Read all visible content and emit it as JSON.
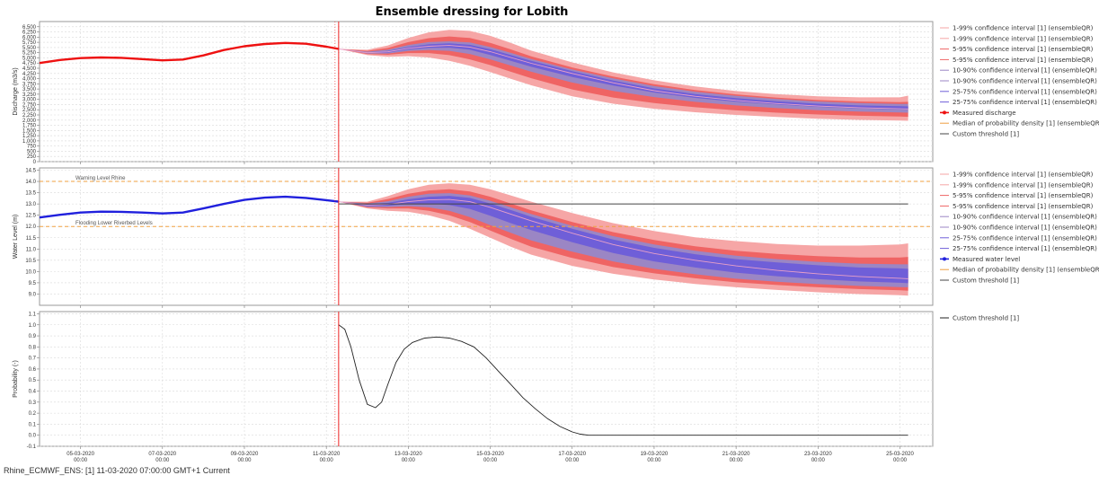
{
  "title": "Ensemble dressing for Lobith",
  "footer": "Rhine_ECMWF_ENS: [1] 11-03-2020 07:00:00 GMT+1 Current",
  "colors": {
    "band_outer": "#f6a6a6",
    "band_mid": "#ef6464",
    "band_inner": "#9b86c4",
    "band_core": "#6f5fd8",
    "median": "#e8a0c8",
    "discharge": "#ee1111",
    "water": "#2020dd",
    "threshold": "#444444",
    "level_line": "#f0a040",
    "forecast_line": "#ee2222"
  },
  "chart_data": [
    {
      "type": "area",
      "ylabel": "Discharge (m3/s)",
      "ylim": [
        0,
        6750
      ],
      "yticks": [
        0,
        250,
        500,
        750,
        1000,
        1250,
        1500,
        1750,
        2000,
        2250,
        2500,
        2750,
        3000,
        3250,
        3500,
        3750,
        4000,
        4250,
        4500,
        4750,
        5000,
        5250,
        5500,
        5750,
        6000,
        6250,
        6500
      ],
      "ytick_labels": [
        "0",
        "250",
        "500",
        "750",
        "1,000",
        "1,250",
        "1,500",
        "1,750",
        "2,000",
        "2,250",
        "2,500",
        "2,750",
        "3,000",
        "3,250",
        "3,500",
        "3,750",
        "4,000",
        "4,250",
        "4,500",
        "4,750",
        "5,000",
        "5,250",
        "5,500",
        "5,750",
        "6,000",
        "6,250",
        "6,500"
      ],
      "legend": [
        "1-99% confidence interval [1]  (ensembleQR)",
        "1-99% confidence interval [1]  (ensembleQR)",
        "5-95% confidence interval [1]  (ensembleQR)",
        "5-95% confidence interval [1]  (ensembleQR)",
        "10-90% confidence interval [1]  (ensembleQR)",
        "10-90% confidence interval [1]  (ensembleQR)",
        "25-75% confidence interval [1]  (ensembleQR)",
        "25-75% confidence interval [1]  (ensembleQR)",
        "Measured discharge",
        "Median of probability density [1]  (ensembleQR)",
        "Custom threshold [1]"
      ],
      "measured_name": "Measured discharge",
      "measured": {
        "x": [
          4.0,
          4.5,
          5.0,
          5.5,
          6.0,
          6.5,
          7.0,
          7.5,
          8.0,
          8.5,
          9.0,
          9.5,
          10.0,
          10.5,
          11.0,
          11.3
        ],
        "y": [
          4750,
          4900,
          4990,
          5020,
          5000,
          4940,
          4880,
          4920,
          5120,
          5380,
          5560,
          5670,
          5720,
          5680,
          5540,
          5430
        ]
      },
      "forecast_x": [
        11.3,
        12.0,
        12.5,
        13.0,
        13.5,
        14.0,
        14.5,
        15.0,
        15.5,
        16.0,
        17.0,
        18.0,
        19.0,
        20.0,
        21.0,
        22.0,
        23.0,
        24.0,
        25.0,
        25.2
      ],
      "median": [
        5430,
        5250,
        5290,
        5460,
        5560,
        5600,
        5520,
        5300,
        5020,
        4740,
        4250,
        3800,
        3420,
        3150,
        2950,
        2800,
        2680,
        2600,
        2550,
        2540
      ],
      "bands": [
        {
          "lower": [
            5430,
            5130,
            5050,
            5080,
            5020,
            4860,
            4620,
            4320,
            3990,
            3680,
            3150,
            2790,
            2550,
            2380,
            2250,
            2150,
            2070,
            2010,
            1980,
            1970
          ],
          "upper": [
            5430,
            5390,
            5600,
            5960,
            6230,
            6350,
            6300,
            6060,
            5720,
            5350,
            4780,
            4300,
            3920,
            3620,
            3400,
            3250,
            3150,
            3100,
            3100,
            3180
          ]
        },
        {
          "lower": [
            5430,
            5180,
            5150,
            5230,
            5230,
            5130,
            4930,
            4650,
            4330,
            4020,
            3480,
            3090,
            2820,
            2620,
            2470,
            2360,
            2270,
            2210,
            2170,
            2160
          ],
          "upper": [
            5430,
            5340,
            5480,
            5760,
            5950,
            6030,
            5960,
            5720,
            5410,
            5070,
            4540,
            4100,
            3730,
            3450,
            3240,
            3080,
            2970,
            2900,
            2870,
            2880
          ]
        },
        {
          "lower": [
            5430,
            5210,
            5210,
            5330,
            5380,
            5340,
            5190,
            4930,
            4630,
            4330,
            3810,
            3410,
            3110,
            2880,
            2710,
            2580,
            2480,
            2410,
            2370,
            2360
          ],
          "upper": [
            5430,
            5300,
            5390,
            5620,
            5760,
            5800,
            5740,
            5520,
            5240,
            4940,
            4440,
            4010,
            3640,
            3370,
            3170,
            3020,
            2900,
            2820,
            2780,
            2780
          ]
        },
        {
          "lower": [
            5430,
            5230,
            5250,
            5400,
            5480,
            5490,
            5390,
            5140,
            4860,
            4570,
            4080,
            3670,
            3330,
            3070,
            2890,
            2750,
            2640,
            2560,
            2510,
            2500
          ],
          "upper": [
            5430,
            5270,
            5330,
            5520,
            5650,
            5700,
            5630,
            5420,
            5140,
            4860,
            4360,
            3910,
            3530,
            3260,
            3060,
            2910,
            2790,
            2710,
            2670,
            2660
          ]
        }
      ],
      "threshold": null
    },
    {
      "type": "area",
      "ylabel": "Water Level (m)",
      "ylim": [
        8.5,
        14.6
      ],
      "yticks": [
        9.0,
        9.5,
        10.0,
        10.5,
        11.0,
        11.5,
        12.0,
        12.5,
        13.0,
        13.5,
        14.0,
        14.5
      ],
      "ytick_labels": [
        "9.0",
        "9.5",
        "10.0",
        "10.5",
        "11.0",
        "11.5",
        "12.0",
        "12.5",
        "13.0",
        "13.5",
        "14.0",
        "14.5"
      ],
      "legend": [
        "1-99% confidence interval [1]  (ensembleQR)",
        "1-99% confidence interval [1]  (ensembleQR)",
        "5-95% confidence interval [1]  (ensembleQR)",
        "5-95% confidence interval [1]  (ensembleQR)",
        "10-90% confidence interval [1]  (ensembleQR)",
        "10-90% confidence interval [1]  (ensembleQR)",
        "25-75% confidence interval [1]  (ensembleQR)",
        "25-75% confidence interval [1]  (ensembleQR)",
        "Measured water level",
        "Median of probability density [1]  (ensembleQR)",
        "Custom threshold [1]"
      ],
      "measured_name": "Measured water level",
      "measured": {
        "x": [
          4.0,
          4.5,
          5.0,
          5.5,
          6.0,
          6.5,
          7.0,
          7.5,
          8.0,
          8.5,
          9.0,
          9.5,
          10.0,
          10.5,
          11.0,
          11.3
        ],
        "y": [
          12.4,
          12.52,
          12.62,
          12.66,
          12.65,
          12.62,
          12.58,
          12.62,
          12.8,
          13.0,
          13.18,
          13.28,
          13.32,
          13.27,
          13.17,
          13.1
        ]
      },
      "forecast_x": [
        11.3,
        12.0,
        12.5,
        13.0,
        13.5,
        14.0,
        14.5,
        15.0,
        15.5,
        16.0,
        17.0,
        18.0,
        19.0,
        20.0,
        21.0,
        22.0,
        23.0,
        24.0,
        25.0,
        25.2
      ],
      "median": [
        13.1,
        12.95,
        12.98,
        13.1,
        13.18,
        13.2,
        13.1,
        12.85,
        12.55,
        12.25,
        11.7,
        11.2,
        10.8,
        10.5,
        10.25,
        10.05,
        9.9,
        9.78,
        9.7,
        9.68
      ],
      "bands": [
        {
          "lower": [
            13.1,
            12.8,
            12.7,
            12.65,
            12.5,
            12.25,
            11.9,
            11.5,
            11.1,
            10.75,
            10.25,
            9.9,
            9.65,
            9.45,
            9.3,
            9.18,
            9.08,
            9.0,
            8.95,
            8.93
          ],
          "upper": [
            13.1,
            13.1,
            13.35,
            13.65,
            13.85,
            13.92,
            13.85,
            13.65,
            13.38,
            13.1,
            12.6,
            12.15,
            11.8,
            11.52,
            11.35,
            11.22,
            11.15,
            11.15,
            11.2,
            11.25
          ]
        },
        {
          "lower": [
            13.1,
            12.84,
            12.8,
            12.8,
            12.7,
            12.5,
            12.2,
            11.82,
            11.45,
            11.1,
            10.6,
            10.2,
            9.92,
            9.7,
            9.52,
            9.4,
            9.3,
            9.22,
            9.17,
            9.15
          ],
          "upper": [
            13.1,
            13.05,
            13.22,
            13.45,
            13.6,
            13.65,
            13.55,
            13.32,
            13.02,
            12.72,
            12.2,
            11.75,
            11.4,
            11.12,
            10.92,
            10.78,
            10.68,
            10.62,
            10.62,
            10.65
          ]
        },
        {
          "lower": [
            13.1,
            12.87,
            12.86,
            12.9,
            12.85,
            12.7,
            12.42,
            12.06,
            11.72,
            11.38,
            10.88,
            10.45,
            10.12,
            9.88,
            9.68,
            9.55,
            9.44,
            9.36,
            9.31,
            9.3
          ],
          "upper": [
            13.1,
            13.02,
            13.12,
            13.32,
            13.45,
            13.48,
            13.38,
            13.14,
            12.85,
            12.55,
            12.03,
            11.57,
            11.2,
            10.92,
            10.7,
            10.55,
            10.43,
            10.35,
            10.32,
            10.32
          ]
        },
        {
          "lower": [
            13.1,
            12.9,
            12.92,
            13.0,
            13.02,
            12.95,
            12.78,
            12.48,
            12.15,
            11.84,
            11.3,
            10.82,
            10.45,
            10.18,
            9.95,
            9.79,
            9.66,
            9.56,
            9.5,
            9.48
          ],
          "upper": [
            13.1,
            12.99,
            13.05,
            13.21,
            13.32,
            13.36,
            13.27,
            13.02,
            12.73,
            12.43,
            11.9,
            11.42,
            11.05,
            10.77,
            10.55,
            10.4,
            10.28,
            10.18,
            10.14,
            10.12
          ]
        }
      ],
      "threshold": {
        "x": [
          11.3,
          25.2
        ],
        "y": [
          13.0,
          13.0
        ]
      },
      "levels": [
        {
          "label": "Warning Level Rhine",
          "value": 14.0
        },
        {
          "label": "Flooding Lower Riverbed Levels",
          "value": 12.0
        }
      ]
    },
    {
      "type": "line",
      "ylabel": "Probability (-)",
      "ylim": [
        -0.1,
        1.12
      ],
      "yticks": [
        -0.1,
        0.0,
        0.1,
        0.2,
        0.3,
        0.4,
        0.5,
        0.6,
        0.7,
        0.8,
        0.9,
        1.0,
        1.1
      ],
      "ytick_labels": [
        "-0.1",
        "0.0",
        "0.1",
        "0.2",
        "0.3",
        "0.4",
        "0.5",
        "0.6",
        "0.7",
        "0.8",
        "0.9",
        "1.0",
        "1.1"
      ],
      "legend": [
        "Custom threshold [1]"
      ],
      "series": [
        {
          "name": "Custom threshold [1]",
          "x": [
            11.3,
            11.45,
            11.6,
            11.8,
            12.0,
            12.2,
            12.35,
            12.5,
            12.7,
            12.9,
            13.1,
            13.4,
            13.7,
            14.0,
            14.3,
            14.6,
            14.9,
            15.2,
            15.5,
            15.8,
            16.1,
            16.4,
            16.7,
            17.0,
            17.2,
            17.4,
            18.0,
            19.0,
            20.0,
            22.0,
            24.0,
            25.2
          ],
          "y": [
            1.0,
            0.96,
            0.8,
            0.5,
            0.28,
            0.25,
            0.3,
            0.46,
            0.66,
            0.78,
            0.84,
            0.88,
            0.89,
            0.88,
            0.85,
            0.8,
            0.7,
            0.58,
            0.46,
            0.34,
            0.24,
            0.15,
            0.08,
            0.03,
            0.01,
            0.0,
            0.0,
            0.0,
            0.0,
            0.0,
            0.0,
            0.0
          ]
        }
      ]
    }
  ],
  "x_axis": {
    "ticks": [
      5,
      7,
      9,
      11,
      13,
      15,
      17,
      19,
      21,
      23,
      25
    ],
    "labels": [
      [
        "05-03-2020",
        "00:00"
      ],
      [
        "07-03-2020",
        "00:00"
      ],
      [
        "09-03-2020",
        "00:00"
      ],
      [
        "11-03-2020",
        "00:00"
      ],
      [
        "13-03-2020",
        "00:00"
      ],
      [
        "15-03-2020",
        "00:00"
      ],
      [
        "17-03-2020",
        "00:00"
      ],
      [
        "19-03-2020",
        "00:00"
      ],
      [
        "21-03-2020",
        "00:00"
      ],
      [
        "23-03-2020",
        "00:00"
      ],
      [
        "25-03-2020",
        "00:00"
      ]
    ],
    "xlim": [
      4.0,
      25.8
    ],
    "forecast_time": 11.3
  }
}
